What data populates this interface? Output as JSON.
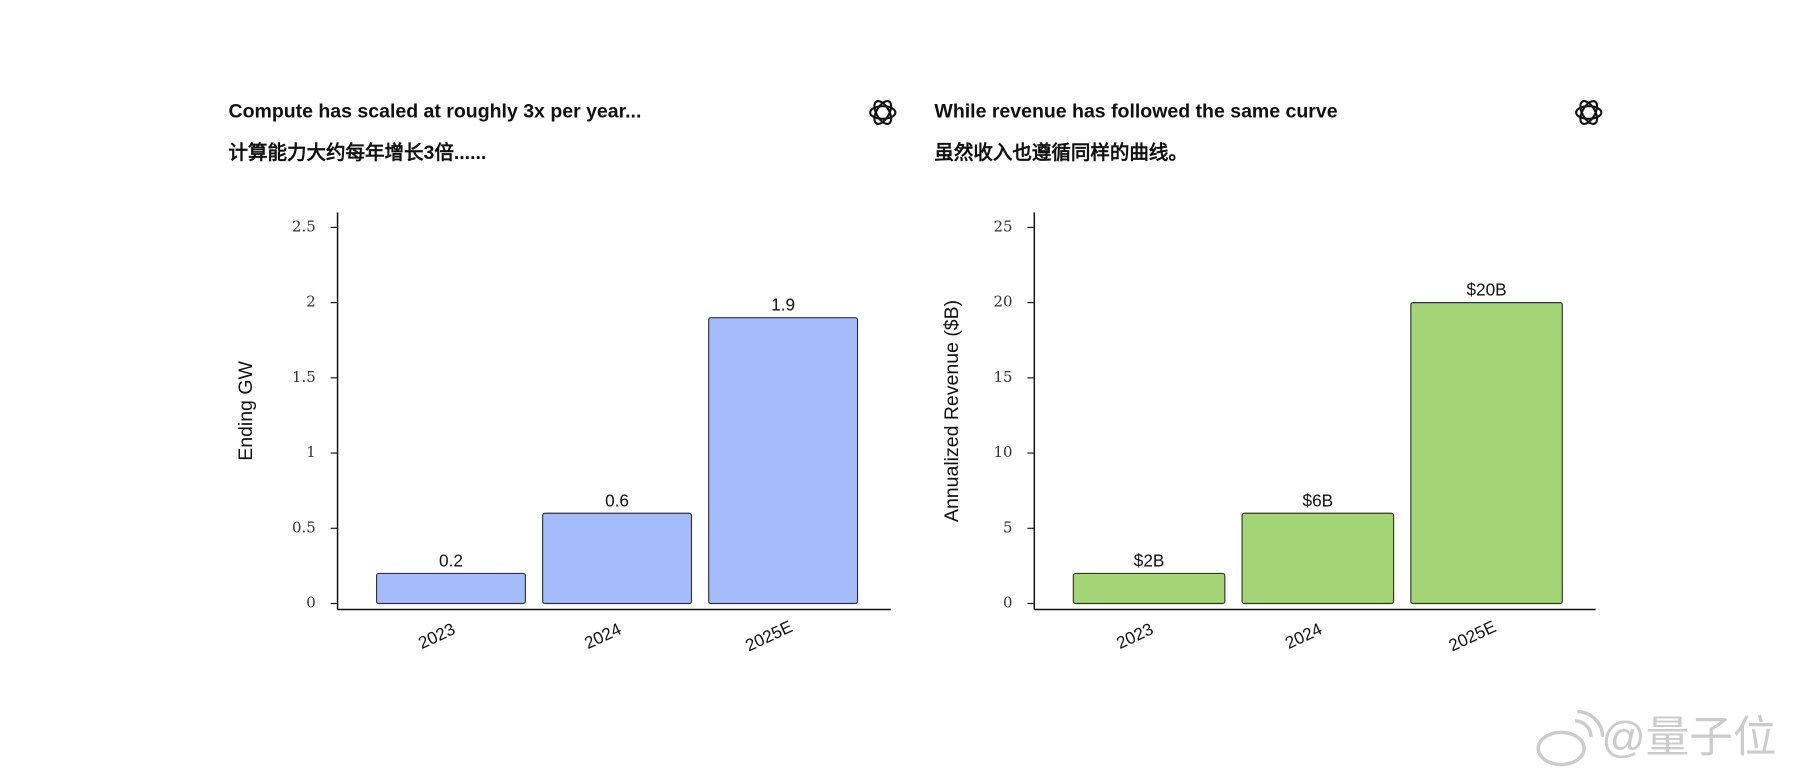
{
  "chart_data": [
    {
      "type": "bar",
      "title": "Compute has scaled at roughly 3x per year...",
      "subtitle": "计算能力大约每年增长3倍......",
      "y_label": "Ending GW",
      "categories": [
        "2023",
        "2024",
        "2025E"
      ],
      "values": [
        0.2,
        0.6,
        1.9
      ],
      "color": "#a4bcfa",
      "ylim": [
        -0.04,
        2.6
      ],
      "yticks": [
        0,
        0.5,
        1,
        1.5,
        2,
        2.5
      ]
    },
    {
      "type": "bar",
      "title": "While revenue has followed the same curve",
      "subtitle": "虽然收入也遵循同样的曲线。",
      "y_label": "Annualized Revenue ($B)",
      "categories": [
        "2023",
        "2024",
        "2025E"
      ],
      "values": [
        2,
        6,
        20
      ],
      "value_labels": [
        "$2B",
        "$6B",
        "$20B"
      ],
      "color": "#a3d576",
      "ylim": [
        -0.4,
        26
      ],
      "yticks": [
        0,
        5,
        10,
        15,
        20,
        25
      ]
    }
  ],
  "watermark": "@量子位"
}
